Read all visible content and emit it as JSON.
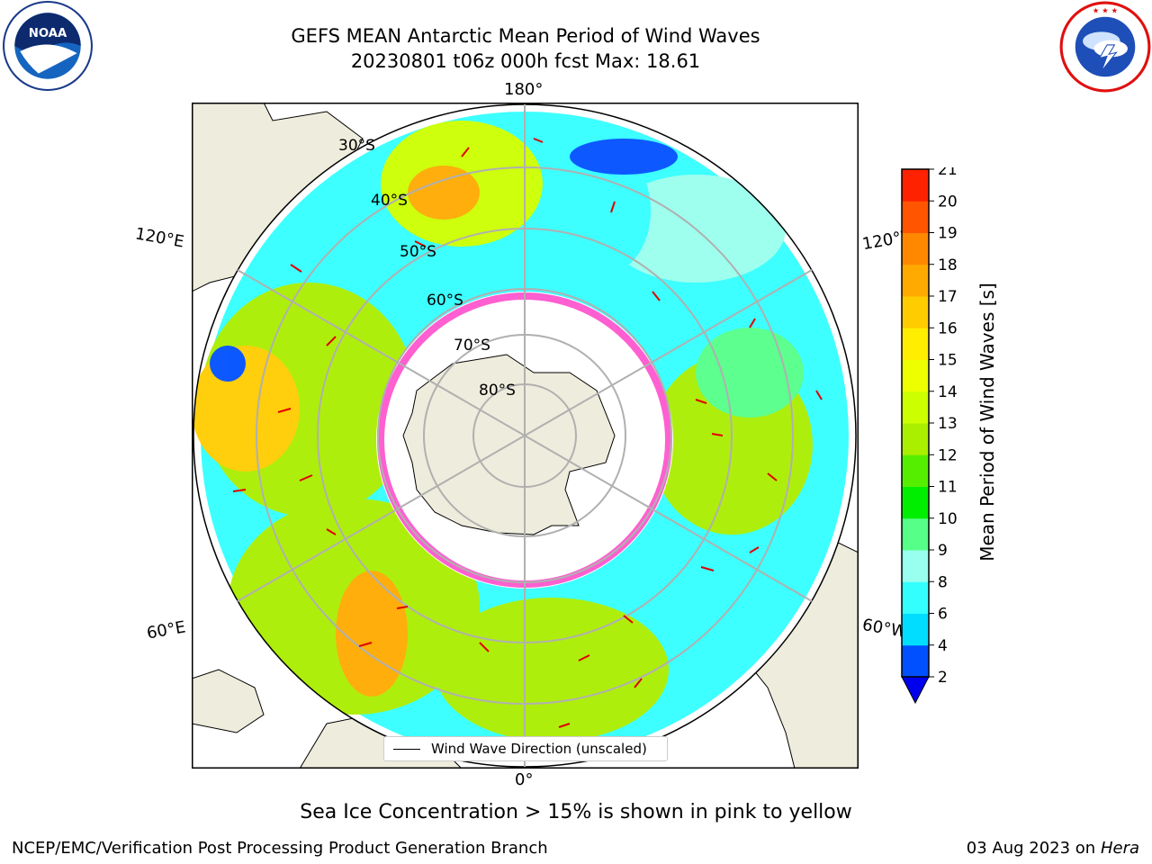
{
  "title": {
    "line1": "GEFS MEAN Antarctic Mean Period of Wind Waves",
    "line2": "20230801 t06z 000h fcst   Max: 18.61"
  },
  "logos": {
    "left": "noaa-logo",
    "left_text": "NOAA",
    "right": "nws-logo",
    "right_text": "NATIONAL WEATHER SERVICE"
  },
  "map": {
    "projection": "south-polar-stereographic",
    "longitude_labels": {
      "top": "180°",
      "bottom": "0°",
      "upper_left": "120°E",
      "upper_right": "120°W",
      "lower_left": "60°E",
      "lower_right": "60°W"
    },
    "latitude_labels": [
      "30°S",
      "40°S",
      "50°S",
      "60°S",
      "70°S",
      "80°S"
    ],
    "land_color": "#eeecdc",
    "sea_ice_color": "#ff5fd0",
    "arrow_color": "#e00000"
  },
  "legend": {
    "label": "Wind Wave Direction (unscaled)"
  },
  "colorbar": {
    "label": "Mean Period of Wind Waves [s]",
    "ticks": [
      "2",
      "4",
      "6",
      "8",
      "9",
      "10",
      "11",
      "12",
      "13",
      "14",
      "15",
      "16",
      "17",
      "18",
      "19",
      "20",
      "21"
    ],
    "colors": [
      "#0050ff",
      "#00ddff",
      "#33ffff",
      "#99ffee",
      "#55ff88",
      "#00ee00",
      "#55ee00",
      "#aaee00",
      "#ccff00",
      "#eeff00",
      "#ffee00",
      "#ffcc00",
      "#ffaa00",
      "#ff8800",
      "#ff5500",
      "#ff2200",
      "#ff0000"
    ]
  },
  "note": "Sea Ice Concentration > 15% is shown in pink to yellow",
  "footer": {
    "left": "NCEP/EMC/Verification Post Processing Product Generation Branch",
    "date": "03 Aug 2023 on",
    "host": "Hera"
  }
}
